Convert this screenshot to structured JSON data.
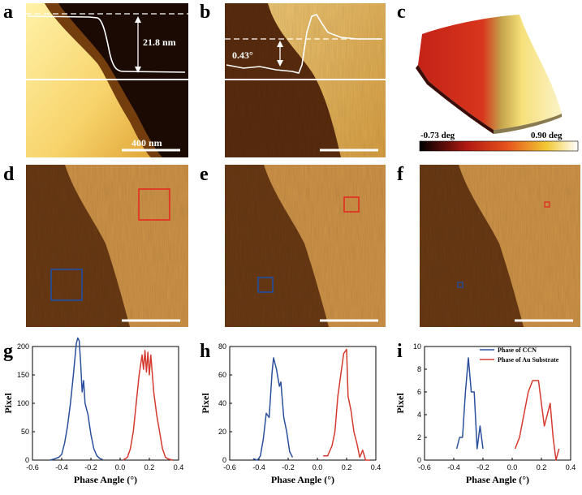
{
  "panels": {
    "a": {
      "label": "a",
      "scalebar": "400 nm",
      "height_text": "21.8 nm"
    },
    "b": {
      "label": "b",
      "angle_text": "0.43°"
    },
    "c": {
      "label": "c",
      "cbar_min": "-0.73 deg",
      "cbar_max": "0.90 deg"
    },
    "d": {
      "label": "d"
    },
    "e": {
      "label": "e"
    },
    "f": {
      "label": "f"
    },
    "g": {
      "label": "g"
    },
    "h": {
      "label": "h"
    },
    "i": {
      "label": "i"
    }
  },
  "colors": {
    "ccn": "#2a4f9c",
    "au": "#d63a2f"
  },
  "legend": {
    "ccn": "Phase of CCN",
    "au": "Phase of Au Substrate"
  },
  "chart_data": [
    {
      "panel": "g",
      "type": "line",
      "xlabel": "Phase Angle (°)",
      "ylabel": "Pixel",
      "xlim": [
        -0.6,
        0.4
      ],
      "ylim": [
        0,
        200
      ],
      "xticks": [
        "-0.6",
        "-0.4",
        "-0.2",
        "0.0",
        "0.2",
        "0.4"
      ],
      "yticks": [
        "0",
        "50",
        "100",
        "150",
        "200"
      ],
      "series": [
        {
          "name": "Phase of CCN",
          "x": [
            -0.48,
            -0.45,
            -0.42,
            -0.4,
            -0.38,
            -0.36,
            -0.34,
            -0.32,
            -0.3,
            -0.29,
            -0.28,
            -0.27,
            -0.26,
            -0.25,
            -0.24,
            -0.22,
            -0.2,
            -0.18,
            -0.16,
            -0.14,
            -0.12
          ],
          "y": [
            0,
            2,
            5,
            10,
            30,
            60,
            100,
            150,
            205,
            215,
            210,
            170,
            120,
            140,
            100,
            80,
            45,
            20,
            8,
            3,
            1
          ]
        },
        {
          "name": "Phase of Au Substrate",
          "x": [
            0.02,
            0.05,
            0.07,
            0.09,
            0.11,
            0.13,
            0.15,
            0.16,
            0.17,
            0.18,
            0.19,
            0.2,
            0.21,
            0.23,
            0.25,
            0.27,
            0.29,
            0.31,
            0.33,
            0.36
          ],
          "y": [
            0,
            5,
            20,
            50,
            100,
            150,
            185,
            160,
            193,
            155,
            190,
            150,
            185,
            120,
            80,
            50,
            20,
            5,
            2,
            0
          ]
        }
      ]
    },
    {
      "panel": "h",
      "type": "line",
      "xlabel": "Phase Angle (°)",
      "ylabel": "Pixel",
      "xlim": [
        -0.6,
        0.4
      ],
      "ylim": [
        0,
        80
      ],
      "xticks": [
        "-0.6",
        "-0.4",
        "-0.2",
        "0.0",
        "0.2",
        "0.4"
      ],
      "yticks": [
        "0",
        "20",
        "40",
        "60",
        "80"
      ],
      "series": [
        {
          "name": "Phase of CCN",
          "x": [
            -0.44,
            -0.41,
            -0.39,
            -0.37,
            -0.35,
            -0.33,
            -0.31,
            -0.3,
            -0.28,
            -0.26,
            -0.25,
            -0.23,
            -0.21,
            -0.19,
            -0.17
          ],
          "y": [
            1,
            0,
            3,
            15,
            33,
            30,
            62,
            72,
            64,
            52,
            55,
            30,
            20,
            6,
            2
          ]
        },
        {
          "name": "Phase of Au Substrate",
          "x": [
            0.04,
            0.07,
            0.1,
            0.12,
            0.14,
            0.16,
            0.18,
            0.2,
            0.21,
            0.23,
            0.25,
            0.27,
            0.29,
            0.31,
            0.33,
            0.36
          ],
          "y": [
            3,
            3,
            10,
            20,
            45,
            60,
            75,
            78,
            45,
            35,
            20,
            12,
            2,
            7,
            0,
            0
          ]
        }
      ]
    },
    {
      "panel": "i",
      "type": "line",
      "xlabel": "Phase Angle (°)",
      "ylabel": "Pixel",
      "xlim": [
        -0.6,
        0.4
      ],
      "ylim": [
        0,
        10
      ],
      "xticks": [
        "-0.6",
        "-0.4",
        "-0.2",
        "0.0",
        "0.2",
        "0.4"
      ],
      "yticks": [
        "0",
        "2",
        "4",
        "6",
        "8",
        "10"
      ],
      "series": [
        {
          "name": "Phase of CCN",
          "x": [
            -0.38,
            -0.36,
            -0.34,
            -0.32,
            -0.3,
            -0.28,
            -0.26,
            -0.24,
            -0.22,
            -0.2
          ],
          "y": [
            1,
            2,
            2,
            6,
            9,
            6,
            6,
            1,
            3,
            1
          ]
        },
        {
          "name": "Phase of Au Substrate",
          "x": [
            0.02,
            0.05,
            0.08,
            0.11,
            0.14,
            0.16,
            0.18,
            0.2,
            0.22,
            0.24,
            0.26,
            0.28,
            0.3,
            0.32
          ],
          "y": [
            1,
            2,
            4,
            6,
            7,
            7,
            7,
            5,
            3,
            4,
            5,
            2,
            0,
            1
          ]
        }
      ]
    }
  ]
}
